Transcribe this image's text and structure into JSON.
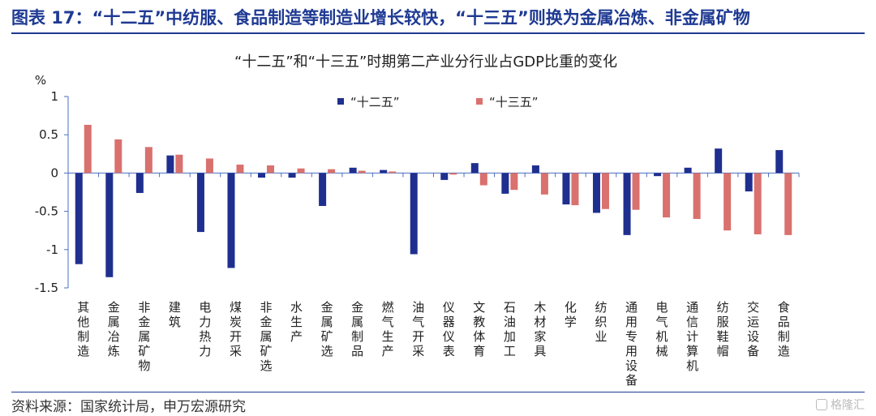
{
  "header": {
    "title": "图表 17：“十二五”中纺服、食品制造等制造业增长较快，“十三五”则换为金属冶炼、非金属矿物"
  },
  "footer": {
    "source": "资料来源：国家统计局，申万宏源研究",
    "watermark": "格隆汇"
  },
  "chart_data": {
    "type": "bar",
    "title": "“十二五”和“十三五”时期第二产业分行业占GDP比重的变化",
    "ylabel": "%",
    "ylim": [
      -1.5,
      1
    ],
    "yticks": [
      1,
      0.5,
      0,
      -0.5,
      -1,
      -1.5
    ],
    "ytick_labels": [
      "1",
      "0.5",
      "0",
      "-0.5",
      "-1",
      "-1.5"
    ],
    "grid": false,
    "legend": "top-center",
    "categories": [
      "其他制造",
      "金属冶炼",
      "非金属矿物",
      "建筑",
      "电力热力",
      "煤炭开采",
      "非金属矿选",
      "水生产",
      "金属矿选",
      "金属制品",
      "燃气生产",
      "油气开采",
      "仪器仪表",
      "文教体育",
      "石油加工",
      "木材家具",
      "化学",
      "纺织业",
      "通用专用设备",
      "电气机械",
      "通信计算机",
      "纺服鞋帽",
      "交运设备",
      "食品制造"
    ],
    "series": [
      {
        "name": "“十二五”",
        "color": "#1f2f8f",
        "values": [
          -1.19,
          -1.36,
          -0.26,
          0.23,
          -0.77,
          -1.24,
          -0.06,
          -0.06,
          -0.43,
          0.07,
          0.04,
          -1.06,
          -0.09,
          0.13,
          -0.27,
          0.1,
          -0.41,
          -0.52,
          -0.81,
          -0.04,
          0.07,
          0.32,
          -0.24,
          0.3
        ]
      },
      {
        "name": "“十三五”",
        "color": "#d9716e",
        "values": [
          0.63,
          0.44,
          0.34,
          0.24,
          0.19,
          0.11,
          0.1,
          0.06,
          0.05,
          0.03,
          0.02,
          0.0,
          -0.02,
          -0.16,
          -0.22,
          -0.28,
          -0.42,
          -0.47,
          -0.48,
          -0.58,
          -0.6,
          -0.75,
          -0.8,
          -0.81
        ]
      }
    ]
  }
}
